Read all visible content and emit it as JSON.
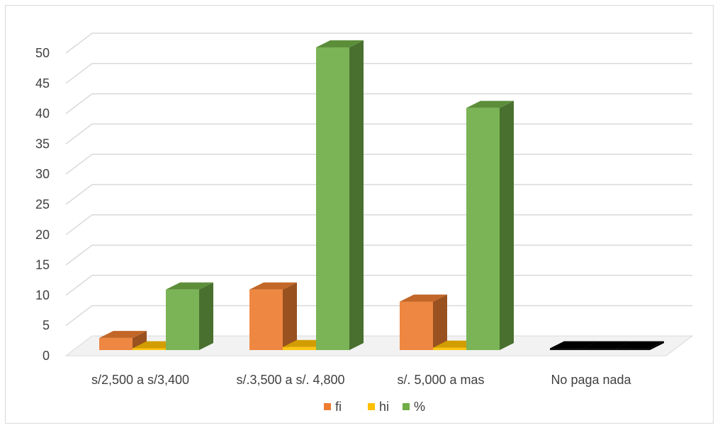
{
  "chart_data": {
    "type": "bar",
    "style": "3d-clustered-column",
    "categories": [
      "s/2,500 a s/3,400",
      "s/.3,500 a s/. 4,800",
      "s/. 5,000 a mas",
      "No paga nada"
    ],
    "series": [
      {
        "name": "fi",
        "values": [
          2,
          10,
          8,
          0
        ],
        "color": "#ED7D31"
      },
      {
        "name": "hi",
        "values": [
          0.1,
          0.5,
          0.4,
          0
        ],
        "color": "#FFC000"
      },
      {
        "name": "%",
        "values": [
          10,
          50,
          40,
          0
        ],
        "color": "#70AD47"
      }
    ],
    "title": "",
    "xlabel": "",
    "ylabel": "",
    "ylim": [
      0,
      50
    ],
    "yticks": [
      0,
      5,
      10,
      15,
      20,
      25,
      30,
      35,
      40,
      45,
      50
    ],
    "grid": true,
    "legend": "bottom"
  }
}
